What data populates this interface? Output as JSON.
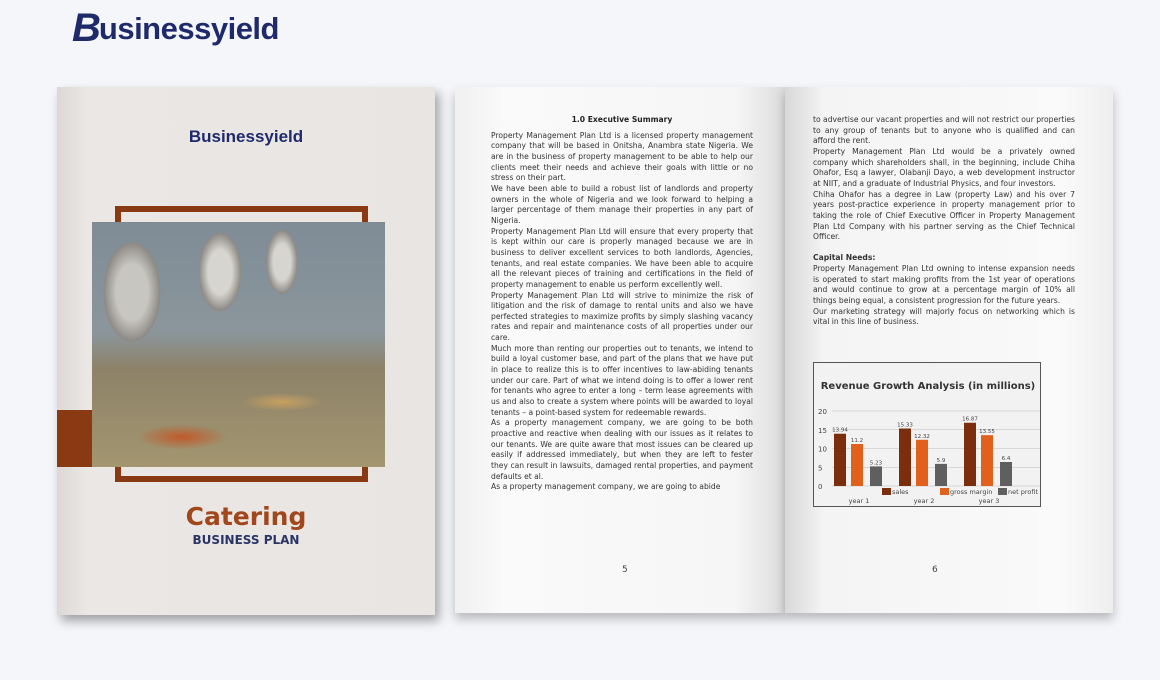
{
  "brand": {
    "logo_text": "Businessyield"
  },
  "cover": {
    "logo_text": "Businessyield",
    "title": "Catering",
    "subtitle": "BUSINESS PLAN",
    "accent_color": "#8a3a12",
    "navy": "#1f2a6b"
  },
  "left_page": {
    "heading": "1.0 Executive Summary",
    "paragraphs": [
      "Property Management Plan Ltd is a licensed property management company that will be based in Onitsha, Anambra state Nigeria. We are in the business of property management to be able to help our clients meet their needs and achieve their goals with little or no stress on their part.",
      "We have been able to build a robust list of landlords and property owners in the whole of Nigeria and we look forward to helping a larger percentage of them manage their properties in any part of Nigeria.",
      "Property Management Plan Ltd will ensure that every property that is kept within our care is properly managed because we are in business to deliver excellent services to both landlords, Agencies, tenants, and real estate companies. We have been able to acquire all the relevant pieces of training and certifications in the field of property management to enable us perform excellently well.",
      "Property Management Plan Ltd will strive to minimize the risk of litigation and the risk of damage to rental units and also we have perfected strategies to maximize profits by simply slashing vacancy rates and repair and maintenance costs of all properties under our care.",
      "Much more than renting our properties out to tenants, we intend to build a loyal customer base, and part of the plans that we have put in place to realize this is to offer incentives to law-abiding tenants under our care. Part of what we intend doing is to offer a lower rent for tenants who agree to enter a long – term lease agreements with us and also to create a system where points will be awarded to loyal tenants – a point-based system for redeemable rewards.",
      "As a property management company, we are going to be both proactive and reactive when dealing with our issues as it relates to our tenants. We are quite aware that most issues can be cleared up easily if addressed immediately, but when they are left to fester they can result in lawsuits, damaged rental properties, and payment defaults et al.",
      "As a property management company, we are going to abide"
    ],
    "page_number": "5"
  },
  "right_page": {
    "paragraphs": [
      "to advertise our vacant properties and will not restrict our properties to any group of tenants but to anyone who is qualified and can afford the rent.",
      "Property Management Plan Ltd would be a privately owned company which shareholders shall, in the beginning, include Chiha Ohafor, Esq a lawyer, Olabanji Dayo, a web development instructor at NIIT, and a graduate of Industrial Physics, and four investors.",
      "Chiha Ohafor has a degree in Law (property Law) and his over 7 years post-practice experience in property management prior to taking the role of Chief Executive Officer in Property Management Plan Ltd Company with his partner serving as the Chief Technical Officer."
    ],
    "capital_heading": "Capital Needs:",
    "capital_paragraphs": [
      "Property Management Plan Ltd owning to intense expansion needs is operated to start making profits from the 1st year of operations and would continue to grow at a percentage margin of 10% all things being equal, a consistent progression for the future years.",
      "Our marketing strategy will majorly focus on networking which is vital in this line of business."
    ],
    "page_number": "6"
  },
  "chart_data": {
    "type": "bar",
    "title": "Revenue Growth Analysis (in millions)",
    "categories": [
      "year 1",
      "year 2",
      "year 3"
    ],
    "series": [
      {
        "name": "sales",
        "values": [
          13.94,
          15.33,
          16.87
        ],
        "color": "#7a2e0e"
      },
      {
        "name": "gross margin",
        "values": [
          11.2,
          12.32,
          13.55
        ],
        "color": "#e0601c"
      },
      {
        "name": "net profit",
        "values": [
          5.23,
          5.9,
          6.4
        ],
        "color": "#5f5f5f"
      }
    ],
    "data_labels": [
      [
        "13.94",
        "15.33",
        "16.87"
      ],
      [
        "11.2",
        "12.32",
        "13.55"
      ],
      [
        "5.23",
        "5.9",
        "6.4"
      ]
    ],
    "ylim": [
      0,
      20
    ],
    "yticks": [
      "0",
      "5",
      "10",
      "15",
      "20"
    ],
    "grid": true,
    "legend": "bottom"
  }
}
